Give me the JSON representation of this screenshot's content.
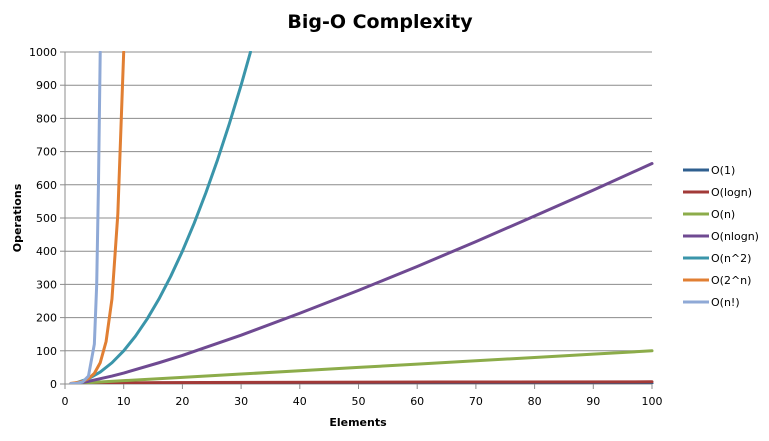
{
  "chart_data": {
    "type": "line",
    "title": "Big-O Complexity",
    "xlabel": "Elements",
    "ylabel": "Operations",
    "xlim": [
      0,
      100
    ],
    "ylim": [
      0,
      1000
    ],
    "xticks": [
      0,
      10,
      20,
      30,
      40,
      50,
      60,
      70,
      80,
      90,
      100
    ],
    "yticks": [
      0,
      100,
      200,
      300,
      400,
      500,
      600,
      700,
      800,
      900,
      1000
    ],
    "grid": "horizontal",
    "legend": "right",
    "series": [
      {
        "name": "O(1)",
        "color": "#2f5f8f",
        "points": [
          [
            1,
            1
          ],
          [
            10,
            1
          ],
          [
            50,
            1
          ],
          [
            100,
            1
          ]
        ]
      },
      {
        "name": "O(logn)",
        "color": "#a23a38",
        "points": [
          [
            1,
            0
          ],
          [
            2,
            1
          ],
          [
            4,
            2
          ],
          [
            8,
            3
          ],
          [
            16,
            4
          ],
          [
            32,
            5
          ],
          [
            64,
            6
          ],
          [
            100,
            6.6
          ]
        ]
      },
      {
        "name": "O(n)",
        "color": "#8cac4a",
        "points": [
          [
            1,
            1
          ],
          [
            10,
            10
          ],
          [
            20,
            20
          ],
          [
            30,
            30
          ],
          [
            40,
            40
          ],
          [
            50,
            50
          ],
          [
            60,
            60
          ],
          [
            70,
            70
          ],
          [
            80,
            80
          ],
          [
            90,
            90
          ],
          [
            100,
            100
          ]
        ]
      },
      {
        "name": "O(nlogn)",
        "color": "#6f4a92",
        "points": [
          [
            1,
            0
          ],
          [
            2,
            2
          ],
          [
            4,
            8
          ],
          [
            8,
            24
          ],
          [
            10,
            33
          ],
          [
            16,
            64
          ],
          [
            20,
            86
          ],
          [
            30,
            147
          ],
          [
            40,
            213
          ],
          [
            50,
            282
          ],
          [
            60,
            354
          ],
          [
            70,
            429
          ],
          [
            80,
            506
          ],
          [
            90,
            584
          ],
          [
            100,
            664
          ]
        ]
      },
      {
        "name": "O(n^2)",
        "color": "#3a95aa",
        "points": [
          [
            1,
            1
          ],
          [
            2,
            4
          ],
          [
            4,
            16
          ],
          [
            6,
            36
          ],
          [
            8,
            64
          ],
          [
            10,
            100
          ],
          [
            12,
            144
          ],
          [
            14,
            196
          ],
          [
            16,
            256
          ],
          [
            18,
            324
          ],
          [
            20,
            400
          ],
          [
            22,
            484
          ],
          [
            24,
            576
          ],
          [
            26,
            676
          ],
          [
            28,
            784
          ],
          [
            30,
            900
          ],
          [
            31.6,
            1000
          ]
        ]
      },
      {
        "name": "O(2^n)",
        "color": "#e17f33",
        "points": [
          [
            1,
            2
          ],
          [
            2,
            4
          ],
          [
            3,
            8
          ],
          [
            4,
            16
          ],
          [
            5,
            32
          ],
          [
            6,
            64
          ],
          [
            7,
            128
          ],
          [
            8,
            256
          ],
          [
            9,
            512
          ],
          [
            10,
            1000
          ]
        ]
      },
      {
        "name": "O(n!)",
        "color": "#8fa9d6",
        "points": [
          [
            1,
            1
          ],
          [
            2,
            2
          ],
          [
            3,
            6
          ],
          [
            4,
            24
          ],
          [
            5,
            120
          ],
          [
            5.4,
            300
          ],
          [
            5.7,
            600
          ],
          [
            6,
            1000
          ]
        ]
      }
    ]
  }
}
